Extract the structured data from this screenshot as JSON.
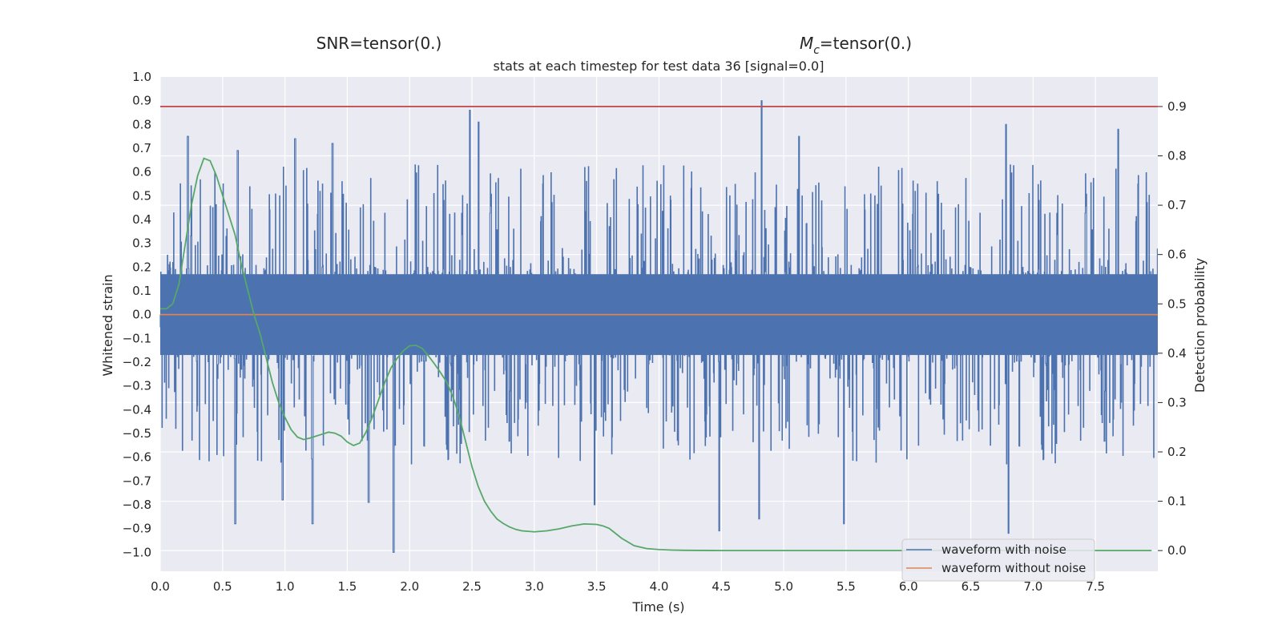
{
  "chart_data": {
    "type": "line",
    "headers": {
      "left": "SNR=tensor(0.)",
      "right_symbol": "M",
      "right_subscript": "c",
      "right_rest": "=tensor(0.)"
    },
    "title": "stats at each timestep for test data 36 [signal=0.0]",
    "xlabel": "Time (s)",
    "ylabel": "Whitened strain",
    "y2label": "Detection probability",
    "xlim": [
      0.0,
      8.0
    ],
    "ylim": [
      -1.08,
      1.0
    ],
    "y2lim": [
      -0.042,
      0.96
    ],
    "xticks": [
      "0.0",
      "0.5",
      "1.0",
      "1.5",
      "2.0",
      "2.5",
      "3.0",
      "3.5",
      "4.0",
      "4.5",
      "5.0",
      "5.5",
      "6.0",
      "6.5",
      "7.0",
      "7.5"
    ],
    "yticks": [
      "1.0",
      "0.9",
      "0.8",
      "0.7",
      "0.6",
      "0.5",
      "0.4",
      "0.3",
      "0.2",
      "0.1",
      "0.0",
      "−0.1",
      "−0.2",
      "−0.3",
      "−0.4",
      "−0.5",
      "−0.6",
      "−0.7",
      "−0.8",
      "−0.9",
      "−1.0"
    ],
    "y2ticks": [
      "0.9",
      "0.8",
      "0.7",
      "0.6",
      "0.5",
      "0.4",
      "0.3",
      "0.2",
      "0.1",
      "0.0"
    ],
    "grid": true,
    "legend_position": "lower-right",
    "series": [
      {
        "name": "waveform with noise",
        "axis": "left",
        "color": "#4c72b0",
        "description_of_values": "dense noise approximately in [-1.0, 0.9]",
        "peaks": [
          [
            0.22,
            0.75
          ],
          [
            0.62,
            0.69
          ],
          [
            1.08,
            0.74
          ],
          [
            1.38,
            0.72
          ],
          [
            2.48,
            0.86
          ],
          [
            2.55,
            0.81
          ],
          [
            4.82,
            0.9
          ],
          [
            5.12,
            0.75
          ],
          [
            6.78,
            0.8
          ],
          [
            7.68,
            0.78
          ]
        ],
        "troughs": [
          [
            0.6,
            -0.88
          ],
          [
            0.98,
            -0.78
          ],
          [
            1.22,
            -0.88
          ],
          [
            1.67,
            -0.79
          ],
          [
            1.87,
            -1.0
          ],
          [
            3.48,
            -0.8
          ],
          [
            4.48,
            -0.91
          ],
          [
            4.8,
            -0.86
          ],
          [
            5.48,
            -0.88
          ],
          [
            6.8,
            -0.92
          ]
        ]
      },
      {
        "name": "waveform without noise",
        "axis": "left",
        "color": "#dd8452",
        "x": [
          0.0,
          8.0
        ],
        "y": [
          0.0,
          0.0
        ]
      },
      {
        "axis": "right",
        "color": "#55a868",
        "x": [
          0.0,
          0.05,
          0.1,
          0.15,
          0.2,
          0.25,
          0.3,
          0.35,
          0.4,
          0.45,
          0.5,
          0.55,
          0.6,
          0.65,
          0.7,
          0.75,
          0.8,
          0.85,
          0.9,
          0.95,
          1.0,
          1.05,
          1.1,
          1.15,
          1.2,
          1.25,
          1.3,
          1.35,
          1.4,
          1.45,
          1.5,
          1.55,
          1.6,
          1.65,
          1.7,
          1.75,
          1.8,
          1.85,
          1.9,
          1.95,
          2.0,
          2.05,
          2.1,
          2.15,
          2.2,
          2.25,
          2.3,
          2.35,
          2.4,
          2.45,
          2.5,
          2.55,
          2.6,
          2.65,
          2.7,
          2.75,
          2.8,
          2.85,
          2.9,
          2.95,
          3.0,
          3.1,
          3.2,
          3.3,
          3.4,
          3.5,
          3.55,
          3.6,
          3.7,
          3.8,
          3.9,
          4.0,
          4.1,
          4.2,
          4.5,
          5.0,
          6.0,
          7.0,
          7.95
        ],
        "y": [
          0.49,
          0.49,
          0.5,
          0.54,
          0.62,
          0.7,
          0.76,
          0.795,
          0.79,
          0.76,
          0.72,
          0.68,
          0.64,
          0.58,
          0.53,
          0.48,
          0.44,
          0.39,
          0.34,
          0.3,
          0.27,
          0.245,
          0.23,
          0.225,
          0.228,
          0.232,
          0.236,
          0.24,
          0.238,
          0.232,
          0.22,
          0.213,
          0.218,
          0.24,
          0.27,
          0.305,
          0.34,
          0.37,
          0.39,
          0.405,
          0.415,
          0.416,
          0.41,
          0.395,
          0.378,
          0.36,
          0.34,
          0.31,
          0.27,
          0.22,
          0.17,
          0.13,
          0.1,
          0.08,
          0.064,
          0.055,
          0.048,
          0.043,
          0.04,
          0.039,
          0.038,
          0.04,
          0.044,
          0.05,
          0.054,
          0.053,
          0.05,
          0.045,
          0.025,
          0.01,
          0.004,
          0.002,
          0.001,
          0.0005,
          0.0,
          0.0,
          0.0,
          0.0,
          0.0
        ]
      },
      {
        "axis": "right",
        "color": "#c44e52",
        "x": [
          0.0,
          8.0
        ],
        "y": [
          0.9,
          0.9
        ]
      }
    ]
  }
}
